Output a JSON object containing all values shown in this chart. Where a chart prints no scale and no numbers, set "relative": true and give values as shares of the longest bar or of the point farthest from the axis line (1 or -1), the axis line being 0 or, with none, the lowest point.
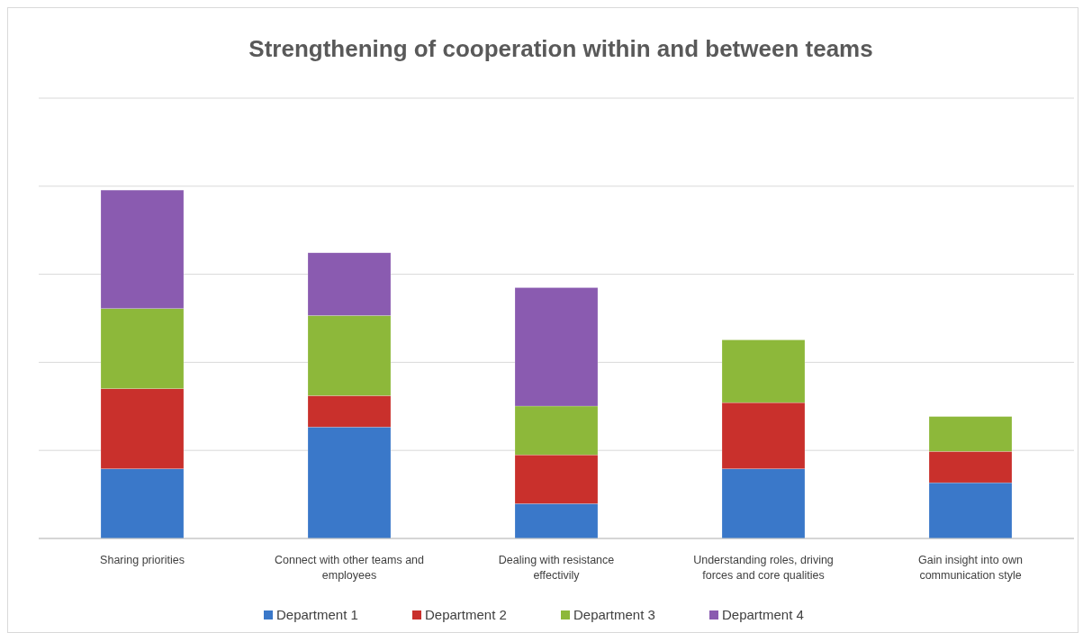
{
  "chart_data": {
    "type": "bar",
    "title": "Strengthening of cooperation within and between teams",
    "stacked": true,
    "relative": true,
    "grid": true,
    "legend": "bottom",
    "categories": [
      "Sharing priorities",
      "Connect with other teams and employees",
      "Dealing with resistance effectivily",
      "Understanding roles, driving forces and core qualities",
      "Gain insight into own communication style"
    ],
    "series": [
      {
        "name": "Department 1",
        "color": "#3a78c9",
        "values": [
          0.2,
          0.32,
          0.1,
          0.2,
          0.16
        ]
      },
      {
        "name": "Department 2",
        "color": "#c9302c",
        "values": [
          0.23,
          0.09,
          0.14,
          0.19,
          0.09
        ]
      },
      {
        "name": "Department 3",
        "color": "#8db83a",
        "values": [
          0.23,
          0.23,
          0.14,
          0.18,
          0.1
        ]
      },
      {
        "name": "Department 4",
        "color": "#8a5bb0",
        "values": [
          0.34,
          0.18,
          0.34,
          null,
          null
        ]
      }
    ]
  }
}
